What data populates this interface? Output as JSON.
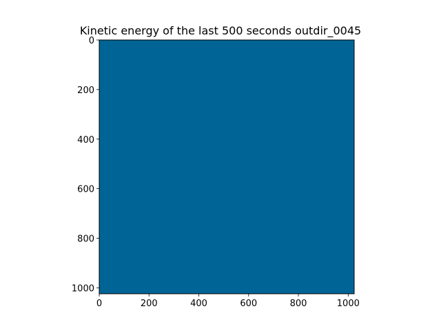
{
  "chart_data": {
    "type": "heatmap",
    "title": "Kinetic energy of the last 500 seconds outdir_0045",
    "xlabel": "",
    "ylabel": "",
    "xlim": [
      0,
      1024
    ],
    "ylim": [
      1024,
      0
    ],
    "x_ticks": [
      0,
      200,
      400,
      600,
      800,
      1000
    ],
    "y_ticks": [
      0,
      200,
      400,
      600,
      800,
      1000
    ],
    "colormap": "cividis",
    "colors": {
      "low": "#00224e",
      "mid": "#7c7b78",
      "high": "#fee838"
    },
    "grid": false,
    "legend": "none"
  }
}
